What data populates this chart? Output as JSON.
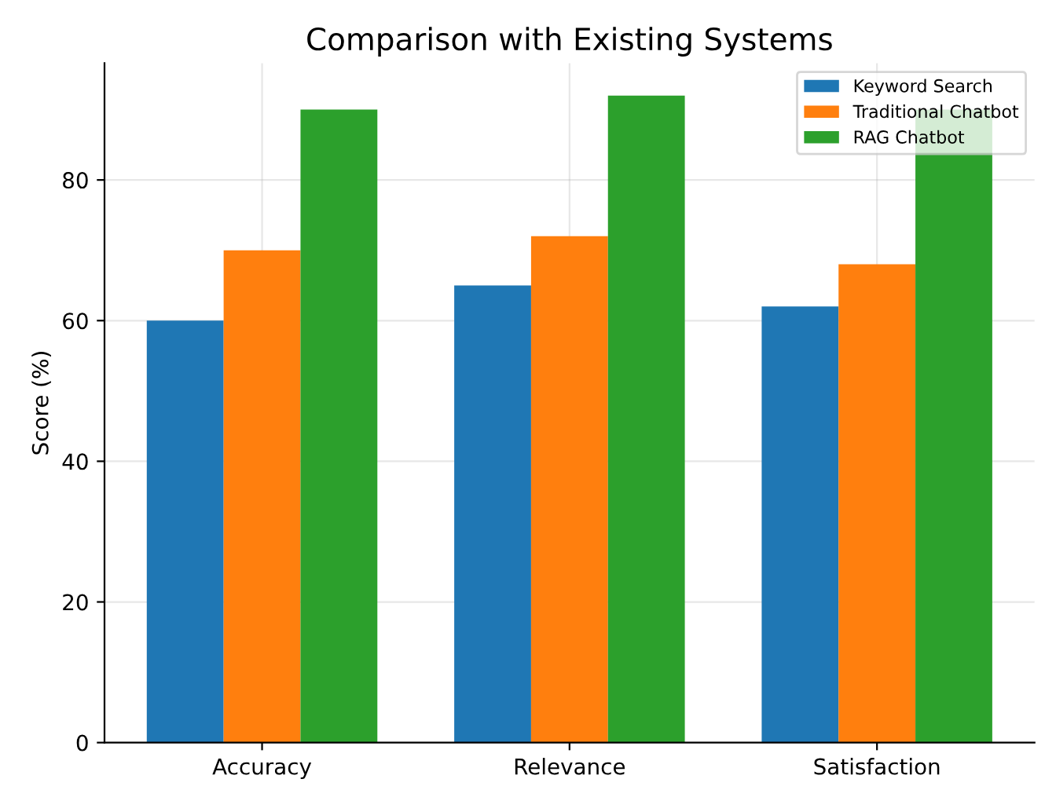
{
  "chart_data": {
    "type": "bar",
    "title": "Comparison with Existing Systems",
    "ylabel": "Score (%)",
    "categories": [
      "Accuracy",
      "Relevance",
      "Satisfaction"
    ],
    "series": [
      {
        "name": "Keyword Search",
        "color": "#1f77b4",
        "values": [
          60,
          65,
          62
        ]
      },
      {
        "name": "Traditional Chatbot",
        "color": "#ff7f0e",
        "values": [
          70,
          72,
          68
        ]
      },
      {
        "name": "RAG Chatbot",
        "color": "#2ca02c",
        "values": [
          90,
          92,
          90
        ]
      }
    ],
    "ylim": [
      0,
      96.6
    ],
    "yticks": [
      0,
      20,
      40,
      60,
      80
    ],
    "grid": true,
    "legend": "top right"
  }
}
